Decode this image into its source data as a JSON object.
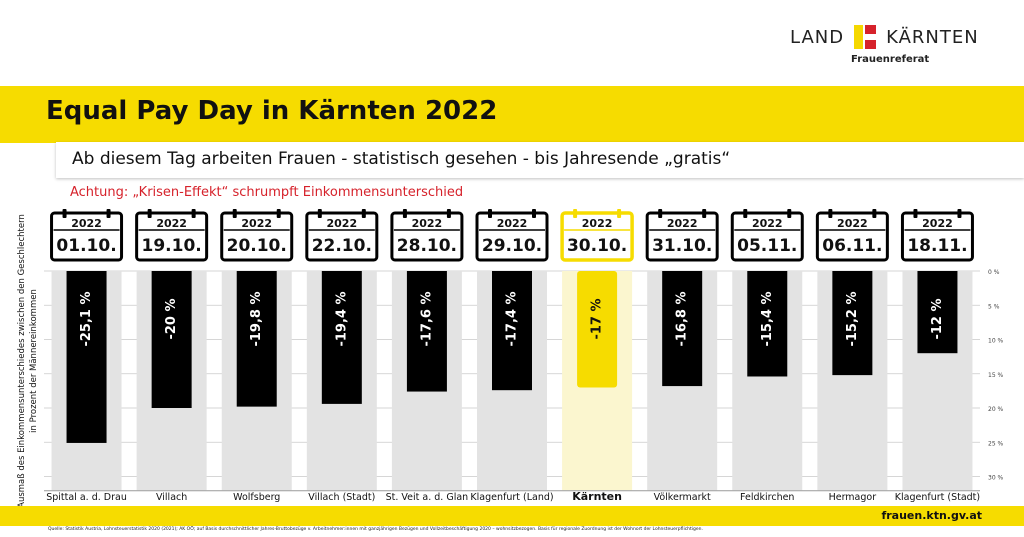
{
  "brand": {
    "word_left": "LAND",
    "word_right": "KÄRNTEN",
    "subtitle": "Frauenreferat",
    "colors": {
      "yellow": "#f6dc00",
      "red": "#d6222b"
    }
  },
  "header": {
    "title": "Equal Pay Day in Kärnten 2022",
    "subtitle": "Ab diesem Tag arbeiten Frauen - statistisch gesehen - bis Jahresende „gratis“",
    "warning": "Achtung: „Krisen-Effekt“ schrumpft Einkommensunterschied"
  },
  "chart_data": {
    "type": "bar",
    "ylabel": "Ausmaß des Einkommensunterschiedes zwischen den Geschlechtern in Prozent der Männereinkommen",
    "ylim": [
      0,
      32
    ],
    "yticks": [
      0,
      5,
      10,
      15,
      20,
      25,
      30
    ],
    "ytick_labels": [
      "0 %",
      "5 %",
      "10 %",
      "15 %",
      "20 %",
      "25 %",
      "30 %"
    ],
    "orientation": "downward",
    "categories": [
      "Spittal a. d. Drau",
      "Villach",
      "Wolfsberg",
      "Villach (Stadt)",
      "St. Veit a. d. Glan",
      "Klagenfurt (Land)",
      "Kärnten",
      "Völkermarkt",
      "Feldkirchen",
      "Hermagor",
      "Klagenfurt (Stadt)"
    ],
    "values": [
      25.1,
      20,
      19.8,
      19.4,
      17.6,
      17.4,
      17,
      16.8,
      15.4,
      15.2,
      12
    ],
    "value_labels": [
      "-25,1 %",
      "-20 %",
      "-19,8 %",
      "-19,4 %",
      "-17,6 %",
      "-17,4 %",
      "-17 %",
      "-16,8 %",
      "-15,4 %",
      "-15,2 %",
      "-12 %"
    ],
    "dates": [
      "01.10.",
      "19.10.",
      "20.10.",
      "22.10.",
      "28.10.",
      "29.10.",
      "30.10.",
      "31.10.",
      "05.11.",
      "06.11.",
      "18.11."
    ],
    "years": [
      "2022",
      "2022",
      "2022",
      "2022",
      "2022",
      "2022",
      "2022",
      "2022",
      "2022",
      "2022",
      "2022"
    ],
    "highlight": "Kärnten",
    "colors": {
      "bar": "#000000",
      "highlight": "#f6dc00",
      "column": "#e3e3e3",
      "highlight_column": "#fbf6cf"
    }
  },
  "footer": {
    "url": "frauen.ktn.gv.at",
    "source": "Quelle: Statistik Austria, Lohnsteuerstatistik 2020 (2021); AK OÖ; auf Basis durchschnittlicher Jahres-Bruttobezüge v. Arbeitnehmer:innen mit ganzjährigen Bezügen und Vollzeitbeschäftigung 2020 – wohnsitzbezogen. Basis für regionale Zuordnung ist der Wohnort der Lohnsteuerpflichtigen."
  }
}
